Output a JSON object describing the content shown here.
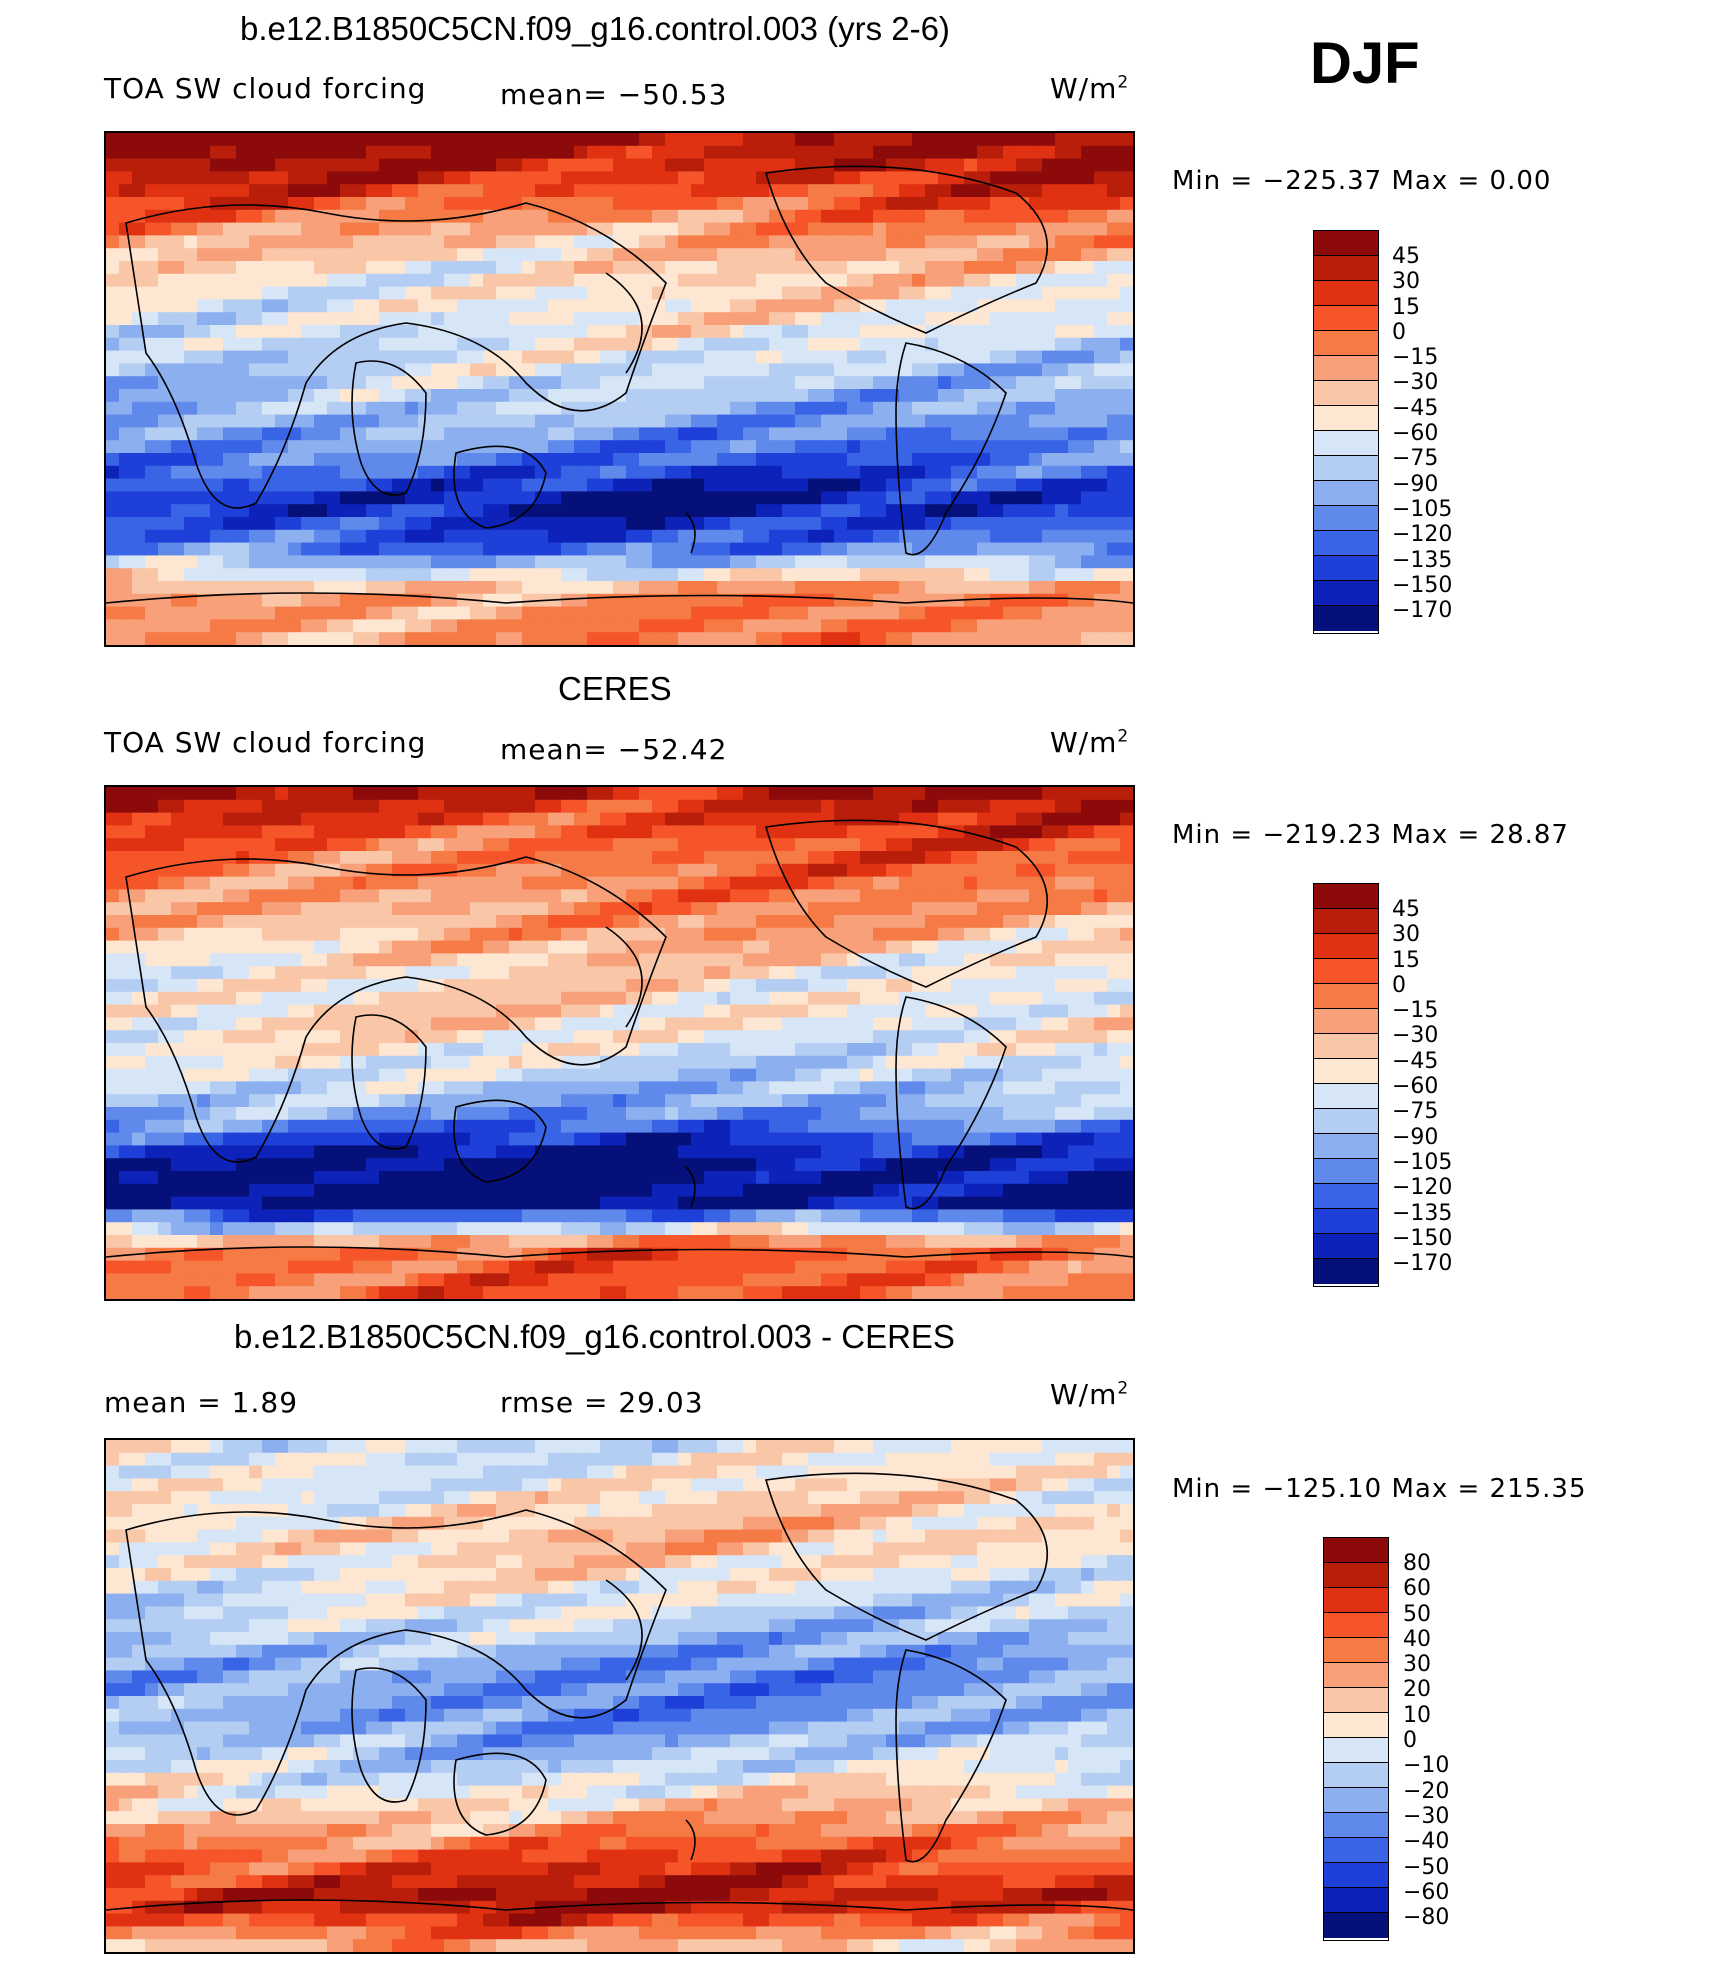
{
  "season": "DJF",
  "panels": [
    {
      "title": "b.e12.B1850C5CN.f09_g16.control.003 (yrs 2-6)",
      "left_label": "TOA SW cloud forcing",
      "center_label": "mean=  −50.53",
      "unit": "W/m",
      "unit_sup": "2",
      "minmax": "Min  =  −225.37  Max  =      0.00",
      "levels": [
        "45",
        "30",
        "15",
        "0",
        "−15",
        "−30",
        "−45",
        "−60",
        "−75",
        "−90",
        "−105",
        "−120",
        "−135",
        "−150",
        "−170"
      ],
      "colors": [
        "#8c0a0a",
        "#b81e0a",
        "#e03212",
        "#f55528",
        "#f57a45",
        "#f7a07a",
        "#f9c6a8",
        "#fde6d2",
        "#d7e6f7",
        "#b4cdf3",
        "#8caff0",
        "#5f8aeb",
        "#3a64e6",
        "#1f3fd9",
        "#0c22b8",
        "#06107a"
      ],
      "zone_profile": [
        1,
        0.75,
        0.35,
        0.1,
        0,
        -0.15,
        -0.3,
        -0.55,
        -0.9,
        -0.55,
        0.4,
        0.4
      ],
      "field_min": -225.37,
      "field_max": 0.0
    },
    {
      "title": "CERES",
      "left_label": "TOA SW cloud forcing",
      "center_label": "mean=  −52.42",
      "unit": "W/m",
      "unit_sup": "2",
      "minmax": "Min  =  −219.23  Max  =    28.87",
      "levels": [
        "45",
        "30",
        "15",
        "0",
        "−15",
        "−30",
        "−45",
        "−60",
        "−75",
        "−90",
        "−105",
        "−120",
        "−135",
        "−150",
        "−170"
      ],
      "colors": [
        "#8c0a0a",
        "#b81e0a",
        "#e03212",
        "#f55528",
        "#f57a45",
        "#f7a07a",
        "#f9c6a8",
        "#fde6d2",
        "#d7e6f7",
        "#b4cdf3",
        "#8caff0",
        "#5f8aeb",
        "#3a64e6",
        "#1f3fd9",
        "#0c22b8",
        "#06107a"
      ],
      "zone_profile": [
        0.9,
        0.6,
        0.45,
        0.3,
        0.05,
        0.1,
        -0.1,
        -0.35,
        -0.95,
        -1.05,
        0.55,
        0.55
      ],
      "field_min": -219.23,
      "field_max": 28.87
    },
    {
      "title": "b.e12.B1850C5CN.f09_g16.control.003 - CERES",
      "left_label": "mean =     1.89",
      "center_label": "rmse  =    29.03",
      "unit": "W/m",
      "unit_sup": "2",
      "minmax": "Min  =  −125.10  Max  =  215.35",
      "levels": [
        "80",
        "60",
        "50",
        "40",
        "30",
        "20",
        "10",
        "0",
        "−10",
        "−20",
        "−30",
        "−40",
        "−50",
        "−60",
        "−80"
      ],
      "colors": [
        "#8c0a0a",
        "#b81e0a",
        "#e03212",
        "#f55528",
        "#f57a45",
        "#f7a07a",
        "#f9c6a8",
        "#fde6d2",
        "#d7e6f7",
        "#b4cdf3",
        "#8caff0",
        "#5f8aeb",
        "#3a64e6",
        "#1f3fd9",
        "#0c22b8",
        "#06107a"
      ],
      "zone_profile": [
        -0.05,
        0.05,
        0.2,
        0,
        -0.2,
        -0.45,
        -0.4,
        -0.15,
        0.2,
        0.6,
        0.95,
        0.25
      ],
      "field_min": -125.1,
      "field_max": 215.35
    }
  ]
}
